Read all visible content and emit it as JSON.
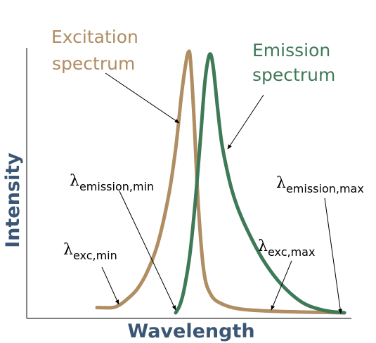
{
  "chart_data": {
    "type": "line",
    "xlabel": "Wavelength",
    "ylabel": "Intensity",
    "series": [
      {
        "name": "Excitation spectrum",
        "color": "#b08d62",
        "x": [
          138,
          160,
          170,
          180,
          195,
          210,
          225,
          240,
          250,
          258,
          264,
          268,
          271,
          276,
          282,
          290,
          300,
          315,
          340,
          380,
          430,
          470,
          490
        ],
        "y": [
          0.02,
          0.02,
          0.03,
          0.05,
          0.09,
          0.16,
          0.27,
          0.45,
          0.63,
          0.83,
          0.95,
          1.0,
          0.97,
          0.75,
          0.42,
          0.16,
          0.07,
          0.035,
          0.015,
          0.007,
          0.003,
          0.001,
          0.0
        ]
      },
      {
        "name": "Emission spectrum",
        "color": "#3f7a58",
        "x": [
          250,
          256,
          262,
          270,
          278,
          285,
          291,
          296,
          300,
          304,
          309,
          315,
          322,
          330,
          340,
          355,
          375,
          400,
          430,
          460,
          490
        ],
        "y": [
          0.0,
          0.03,
          0.09,
          0.22,
          0.43,
          0.66,
          0.87,
          0.97,
          0.99,
          0.93,
          0.8,
          0.66,
          0.56,
          0.47,
          0.39,
          0.3,
          0.2,
          0.11,
          0.04,
          0.01,
          0.0
        ]
      }
    ],
    "grid": false,
    "annotations": [
      {
        "main": "λ",
        "sub": "exc,min"
      },
      {
        "main": "λ",
        "sub": "emission,min"
      },
      {
        "main": "λ",
        "sub": "exc,max"
      },
      {
        "main": "λ",
        "sub": "emission,max"
      }
    ]
  },
  "labels": {
    "excitation_line1": "Excitation",
    "excitation_line2": "spectrum",
    "emission_line1": "Emission",
    "emission_line2": "spectrum"
  }
}
